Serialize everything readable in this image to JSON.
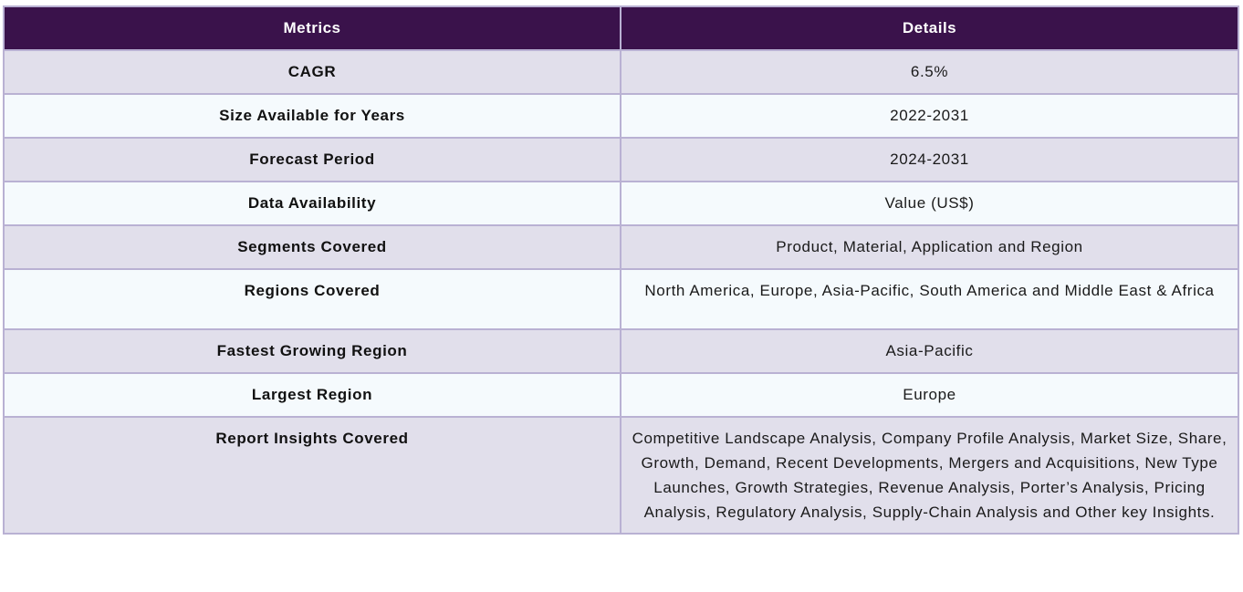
{
  "table": {
    "headers": {
      "metrics": "Metrics",
      "details": "Details"
    },
    "rows": [
      {
        "metric": "CAGR",
        "detail": "6.5%"
      },
      {
        "metric": "Size Available for Years",
        "detail": "2022-2031"
      },
      {
        "metric": "Forecast Period",
        "detail": "2024-2031"
      },
      {
        "metric": "Data Availability",
        "detail": "Value (US$)"
      },
      {
        "metric": "Segments Covered",
        "detail": "Product, Material, Application and Region"
      },
      {
        "metric": "Regions Covered",
        "detail": "North America, Europe, Asia-Pacific, South America and Middle East & Africa"
      },
      {
        "metric": "Fastest Growing Region",
        "detail": "Asia-Pacific"
      },
      {
        "metric": "Largest Region",
        "detail": "Europe"
      },
      {
        "metric": "Report Insights Covered",
        "detail": "Competitive Landscape Analysis, Company Profile Analysis, Market Size, Share, Growth, Demand, Recent Developments, Mergers and Acquisitions, New Type Launches, Growth Strategies, Revenue Analysis, Porter’s Analysis, Pricing Analysis, Regulatory Analysis, Supply-Chain Analysis and Other key Insights."
      }
    ]
  },
  "colors": {
    "header_bg": "#3a124b",
    "row_odd_bg": "#e1dfeb",
    "row_even_bg": "#f5fafd",
    "border": "#b9b1d3"
  }
}
